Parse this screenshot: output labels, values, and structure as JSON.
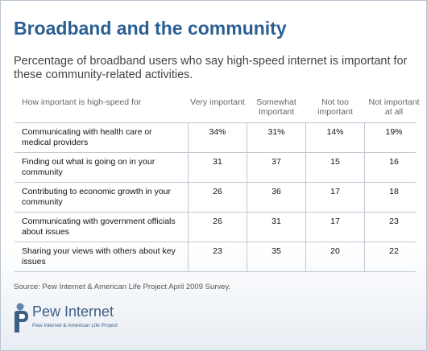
{
  "chart_data": {
    "type": "table",
    "title": "Broadband and the community",
    "subtitle": "Percentage of broadband users who say high-speed internet is important for these community-related activities.",
    "row_header": "How important is high-speed for",
    "columns": [
      "Very important",
      "Somewhat Important",
      "Not too important",
      "Not important at all"
    ],
    "rows": [
      {
        "label": "Communicating with health care or medical providers",
        "values": [
          "34%",
          "31%",
          "14%",
          "19%"
        ]
      },
      {
        "label": "Finding out what is going on in your community",
        "values": [
          "31",
          "37",
          "15",
          "16"
        ]
      },
      {
        "label": "Contributing to economic growth in your community",
        "values": [
          "26",
          "36",
          "17",
          "18"
        ]
      },
      {
        "label": "Communicating with government officials about issues",
        "values": [
          "26",
          "31",
          "17",
          "23"
        ]
      },
      {
        "label": "Sharing your views with others about key issues",
        "values": [
          "23",
          "35",
          "20",
          "22"
        ]
      }
    ],
    "source": "Source: Pew Internet & American Life Project April 2009 Survey."
  },
  "logo": {
    "name": "Pew Internet",
    "tagline": "Pew Internet & American Life Project"
  },
  "colors": {
    "title": "#2b5f92",
    "grid": "#bfc7d2",
    "logo": "#3d5f84"
  }
}
